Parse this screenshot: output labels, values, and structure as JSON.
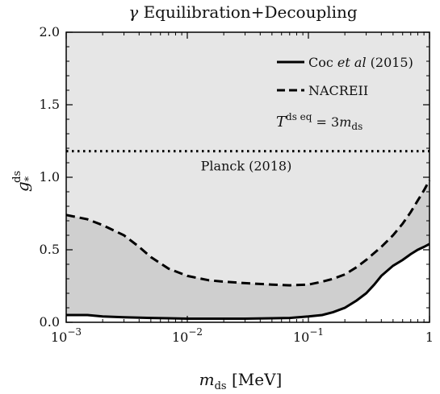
{
  "chart_data": {
    "type": "area",
    "title": "γ Equilibration+Decoupling",
    "xlabel": "m_ds [MeV]",
    "ylabel": "g_*^ds",
    "x_scale": "log",
    "xlim": [
      0.001,
      1
    ],
    "ylim": [
      0,
      2.0
    ],
    "x_ticks": [
      {
        "value": 0.001,
        "label": "10^-3"
      },
      {
        "value": 0.01,
        "label": "10^-2"
      },
      {
        "value": 0.1,
        "label": "10^-1"
      },
      {
        "value": 1,
        "label": "1"
      }
    ],
    "y_ticks": [
      {
        "value": 0.0,
        "label": "0.0"
      },
      {
        "value": 0.5,
        "label": "0.5"
      },
      {
        "value": 1.0,
        "label": "1.0"
      },
      {
        "value": 1.5,
        "label": "1.5"
      },
      {
        "value": 2.0,
        "label": "2.0"
      }
    ],
    "grid": false,
    "legend_position": "top-right",
    "series": [
      {
        "name": "Coc et al (2015)",
        "style": "solid",
        "x": [
          0.001,
          0.0015,
          0.002,
          0.003,
          0.005,
          0.007,
          0.01,
          0.02,
          0.03,
          0.05,
          0.07,
          0.1,
          0.13,
          0.16,
          0.2,
          0.25,
          0.3,
          0.35,
          0.4,
          0.5,
          0.6,
          0.7,
          0.8,
          0.9,
          1.0
        ],
        "y": [
          0.05,
          0.05,
          0.04,
          0.035,
          0.03,
          0.028,
          0.025,
          0.025,
          0.025,
          0.028,
          0.03,
          0.04,
          0.05,
          0.07,
          0.1,
          0.15,
          0.2,
          0.26,
          0.32,
          0.39,
          0.43,
          0.47,
          0.5,
          0.52,
          0.54
        ]
      },
      {
        "name": "NACREII",
        "style": "dashed",
        "x": [
          0.001,
          0.0015,
          0.002,
          0.003,
          0.004,
          0.005,
          0.007,
          0.01,
          0.015,
          0.02,
          0.03,
          0.05,
          0.07,
          0.1,
          0.13,
          0.16,
          0.2,
          0.25,
          0.3,
          0.4,
          0.5,
          0.6,
          0.7,
          0.8,
          0.9,
          1.0
        ],
        "y": [
          0.74,
          0.71,
          0.67,
          0.6,
          0.52,
          0.45,
          0.37,
          0.32,
          0.29,
          0.28,
          0.27,
          0.26,
          0.255,
          0.26,
          0.28,
          0.3,
          0.33,
          0.38,
          0.43,
          0.52,
          0.6,
          0.68,
          0.76,
          0.84,
          0.91,
          0.98
        ]
      },
      {
        "name": "Planck (2018)",
        "style": "dotted",
        "x": [
          0.001,
          1
        ],
        "y": [
          1.18,
          1.18
        ]
      }
    ],
    "shaded_regions": [
      {
        "between": [
          "Coc et al (2015)",
          "NACREII"
        ],
        "color": "#cfcfcf"
      },
      {
        "above": 0,
        "color": "#e6e6e6"
      }
    ],
    "annotations": [
      {
        "text": "T^(ds eq) = 3m_ds"
      },
      {
        "text": "Planck (2018)"
      }
    ],
    "colors": {
      "background_region": "#e6e6e6",
      "band": "#cfcfcf",
      "line": "#000000"
    }
  }
}
